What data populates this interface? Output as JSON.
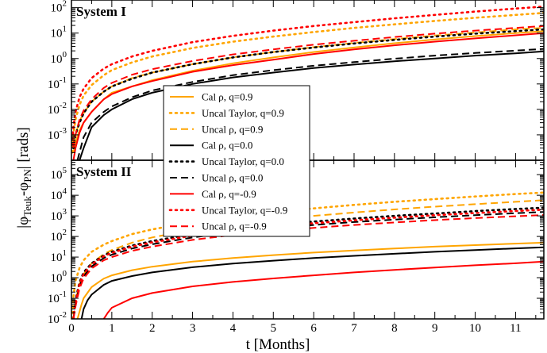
{
  "chart_data": [
    {
      "type": "line",
      "panel": "top",
      "title": "System I",
      "x_scale": "linear",
      "y_scale": "log",
      "xlim": [
        0,
        11.7
      ],
      "ylim": [
        0.0001,
        200
      ],
      "y_ticks": [
        {
          "value": 0.001,
          "base": "10",
          "exp": "-3"
        },
        {
          "value": 0.01,
          "base": "10",
          "exp": "-2"
        },
        {
          "value": 0.1,
          "base": "10",
          "exp": "-1"
        },
        {
          "value": 1,
          "base": "10",
          "exp": "0"
        },
        {
          "value": 10,
          "base": "10",
          "exp": "1"
        },
        {
          "value": 100,
          "base": "10",
          "exp": "2"
        }
      ],
      "series": [
        {
          "name": "Cal ρ, q=0.9",
          "color": "#ffa500",
          "dash": "solid",
          "x": [
            0.05,
            0.1,
            0.2,
            0.3,
            0.5,
            0.8,
            1,
            1.5,
            2,
            3,
            4,
            5,
            6,
            7,
            8,
            9,
            10,
            11,
            11.7
          ],
          "y": [
            0.0002,
            0.0005,
            0.0015,
            0.003,
            0.008,
            0.025,
            0.045,
            0.08,
            0.14,
            0.33,
            0.65,
            1.1,
            1.8,
            2.7,
            4.0,
            5.6,
            7.6,
            10,
            12
          ]
        },
        {
          "name": "Uncal Taylor, q=0.9",
          "color": "#ffa500",
          "dash": "dot",
          "x": [
            0.02,
            0.05,
            0.1,
            0.2,
            0.3,
            0.5,
            0.8,
            1,
            1.5,
            2,
            3,
            4,
            5,
            6,
            7,
            8,
            9,
            10,
            11,
            11.7
          ],
          "y": [
            0.0002,
            0.001,
            0.004,
            0.015,
            0.035,
            0.09,
            0.22,
            0.35,
            0.7,
            1.2,
            2.6,
            4.6,
            7.3,
            11,
            16,
            22,
            30,
            40,
            52,
            62
          ]
        },
        {
          "name": "Uncal ρ, q=0.9",
          "color": "#ffa500",
          "dash": "dash",
          "x": [
            0.05,
            0.1,
            0.2,
            0.3,
            0.5,
            0.8,
            1,
            1.5,
            2,
            3,
            4,
            5,
            6,
            7,
            8,
            9,
            10,
            11,
            11.7
          ],
          "y": [
            0.0004,
            0.001,
            0.0035,
            0.007,
            0.02,
            0.05,
            0.08,
            0.17,
            0.28,
            0.6,
            1.1,
            1.8,
            2.8,
            4.1,
            5.8,
            8,
            10.5,
            14,
            16
          ]
        },
        {
          "name": "Cal ρ, q=0.0",
          "color": "#000000",
          "dash": "solid",
          "x": [
            0.2,
            0.3,
            0.5,
            0.8,
            1,
            1.5,
            2,
            3,
            4,
            5,
            6,
            7,
            8,
            9,
            10,
            11,
            11.7
          ],
          "y": [
            0.0001,
            0.0003,
            0.002,
            0.006,
            0.01,
            0.025,
            0.045,
            0.1,
            0.18,
            0.28,
            0.42,
            0.58,
            0.78,
            1.0,
            1.3,
            1.6,
            1.9
          ]
        },
        {
          "name": "Uncal Taylor, q=0.0",
          "color": "#000000",
          "dash": "dot",
          "x": [
            0.05,
            0.1,
            0.2,
            0.3,
            0.5,
            0.8,
            1,
            1.5,
            2,
            3,
            4,
            5,
            6,
            7,
            8,
            9,
            10,
            11,
            11.7
          ],
          "y": [
            0.0003,
            0.001,
            0.003,
            0.007,
            0.02,
            0.05,
            0.08,
            0.16,
            0.28,
            0.6,
            1.1,
            1.8,
            2.7,
            3.9,
            5.4,
            7.3,
            9.5,
            12,
            14
          ]
        },
        {
          "name": "Uncal ρ, q=0.0",
          "color": "#000000",
          "dash": "dash",
          "x": [
            0.15,
            0.25,
            0.3,
            0.5,
            0.8,
            1,
            1.5,
            2,
            3,
            4,
            5,
            6,
            7,
            8,
            9,
            10,
            11,
            11.7
          ],
          "y": [
            0.0001,
            0.0004,
            0.0008,
            0.003,
            0.008,
            0.013,
            0.03,
            0.055,
            0.12,
            0.22,
            0.35,
            0.52,
            0.72,
            0.98,
            1.3,
            1.65,
            2.05,
            2.4
          ]
        },
        {
          "name": "Cal ρ, q=-0.9",
          "color": "#ff0000",
          "dash": "solid",
          "x": [
            0.05,
            0.1,
            0.2,
            0.3,
            0.5,
            0.8,
            1,
            1.5,
            2,
            3,
            4,
            5,
            6,
            7,
            8,
            9,
            10,
            11,
            11.7
          ],
          "y": [
            0.0001,
            0.0003,
            0.0012,
            0.003,
            0.008,
            0.025,
            0.04,
            0.08,
            0.13,
            0.3,
            0.55,
            0.9,
            1.5,
            2.3,
            3.3,
            4.6,
            6.2,
            8.2,
            10
          ]
        },
        {
          "name": "Uncal Taylor, q=-0.9",
          "color": "#ff0000",
          "dash": "dot",
          "x": [
            0.02,
            0.05,
            0.1,
            0.2,
            0.3,
            0.5,
            0.8,
            1,
            1.5,
            2,
            3,
            4,
            5,
            6,
            7,
            8,
            9,
            10,
            11,
            11.7
          ],
          "y": [
            0.0004,
            0.002,
            0.008,
            0.03,
            0.065,
            0.17,
            0.4,
            0.6,
            1.2,
            2,
            4.4,
            7.8,
            12.5,
            19,
            27,
            38,
            52,
            70,
            92,
            110
          ]
        },
        {
          "name": "Uncal ρ, q=-0.9",
          "color": "#ff0000",
          "dash": "dash",
          "x": [
            0.05,
            0.1,
            0.2,
            0.3,
            0.5,
            0.8,
            1,
            1.5,
            2,
            3,
            4,
            5,
            6,
            7,
            8,
            9,
            10,
            11,
            11.7
          ],
          "y": [
            0.0003,
            0.001,
            0.004,
            0.009,
            0.025,
            0.07,
            0.11,
            0.23,
            0.38,
            0.8,
            1.45,
            2.3,
            3.5,
            5,
            7,
            9.5,
            12.5,
            16,
            19
          ]
        }
      ]
    },
    {
      "type": "line",
      "panel": "bottom",
      "title": "System II",
      "x_scale": "linear",
      "y_scale": "log",
      "xlim": [
        0,
        11.7
      ],
      "ylim": [
        0.01,
        500000
      ],
      "y_ticks": [
        {
          "value": 0.01,
          "base": "10",
          "exp": "-2"
        },
        {
          "value": 0.1,
          "base": "10",
          "exp": "-1"
        },
        {
          "value": 1,
          "base": "10",
          "exp": "0"
        },
        {
          "value": 10,
          "base": "10",
          "exp": "1"
        },
        {
          "value": 100,
          "base": "10",
          "exp": "2"
        },
        {
          "value": 1000,
          "base": "10",
          "exp": "3"
        },
        {
          "value": 10000,
          "base": "10",
          "exp": "4"
        },
        {
          "value": 100000,
          "base": "10",
          "exp": "5"
        }
      ],
      "series": [
        {
          "name": "Cal ρ, q=0.9",
          "color": "#ffa500",
          "dash": "solid",
          "x": [
            0.15,
            0.25,
            0.3,
            0.5,
            0.8,
            1,
            1.5,
            2,
            3,
            4,
            5,
            6,
            7,
            8,
            9,
            10,
            11,
            11.7
          ],
          "y": [
            0.01,
            0.05,
            0.1,
            0.35,
            0.9,
            1.3,
            2.3,
            3.4,
            6,
            9,
            12.5,
            16.5,
            21,
            26,
            32,
            38,
            45,
            50
          ]
        },
        {
          "name": "Uncal Taylor, q=0.9",
          "color": "#ffa500",
          "dash": "dot",
          "x": [
            0.02,
            0.05,
            0.1,
            0.2,
            0.3,
            0.5,
            0.8,
            1,
            1.5,
            2,
            3,
            4,
            5,
            6,
            7,
            8,
            9,
            10,
            11,
            11.7
          ],
          "y": [
            0.01,
            0.12,
            0.7,
            3,
            7,
            18,
            40,
            60,
            130,
            220,
            500,
            900,
            1500,
            2300,
            3400,
            4800,
            6500,
            8700,
            11500,
            13500
          ]
        },
        {
          "name": "Uncal ρ, q=0.9",
          "color": "#ffa500",
          "dash": "dash",
          "x": [
            0.05,
            0.1,
            0.2,
            0.3,
            0.5,
            0.8,
            1,
            1.5,
            2,
            3,
            4,
            5,
            6,
            7,
            8,
            9,
            10,
            11,
            11.7
          ],
          "y": [
            0.01,
            0.08,
            0.5,
            1.5,
            5,
            14,
            22,
            50,
            90,
            210,
            390,
            650,
            1000,
            1450,
            2050,
            2800,
            3700,
            4800,
            5800
          ]
        },
        {
          "name": "Cal ρ, q=0.0",
          "color": "#000000",
          "dash": "solid",
          "x": [
            0.25,
            0.3,
            0.4,
            0.5,
            0.8,
            1,
            1.5,
            2,
            3,
            4,
            5,
            6,
            7,
            8,
            9,
            10,
            11,
            11.7
          ],
          "y": [
            0.01,
            0.03,
            0.08,
            0.15,
            0.45,
            0.7,
            1.2,
            1.8,
            3.2,
            4.8,
            6.7,
            9,
            11.5,
            14.5,
            18,
            22,
            26.5,
            30
          ]
        },
        {
          "name": "Uncal Taylor, q=0.0",
          "color": "#000000",
          "dash": "dot",
          "x": [
            0.05,
            0.1,
            0.2,
            0.3,
            0.5,
            0.8,
            1,
            1.5,
            2,
            3,
            4,
            5,
            6,
            7,
            8,
            9,
            10,
            11,
            11.7
          ],
          "y": [
            0.01,
            0.08,
            0.6,
            1.8,
            5,
            12,
            18,
            36,
            60,
            130,
            230,
            360,
            530,
            740,
            1000,
            1300,
            1700,
            2150,
            2500
          ]
        },
        {
          "name": "Uncal ρ, q=0.0",
          "color": "#000000",
          "dash": "dash",
          "x": [
            0.05,
            0.1,
            0.2,
            0.3,
            0.5,
            0.8,
            1,
            1.5,
            2,
            3,
            4,
            5,
            6,
            7,
            8,
            9,
            10,
            11,
            11.7
          ],
          "y": [
            0.01,
            0.05,
            0.4,
            1.2,
            3.5,
            9,
            13,
            26,
            42,
            90,
            160,
            250,
            360,
            500,
            660,
            850,
            1080,
            1350,
            1550
          ]
        },
        {
          "name": "Cal ρ, q=-0.9",
          "color": "#ff0000",
          "dash": "solid",
          "x": [
            0.8,
            0.9,
            1,
            1.5,
            2,
            3,
            4,
            5,
            6,
            7,
            8,
            9,
            10,
            11,
            11.7
          ],
          "y": [
            0.01,
            0.02,
            0.035,
            0.1,
            0.18,
            0.38,
            0.62,
            0.92,
            1.3,
            1.8,
            2.4,
            3.1,
            4,
            5,
            6
          ]
        },
        {
          "name": "Uncal Taylor, q=-0.9",
          "color": "#ff0000",
          "dash": "dot",
          "x": [
            0.05,
            0.1,
            0.2,
            0.3,
            0.5,
            0.8,
            1,
            1.5,
            2,
            3,
            4,
            5,
            6,
            7,
            8,
            9,
            10,
            11,
            11.7
          ],
          "y": [
            0.01,
            0.06,
            0.5,
            1.5,
            4.5,
            11,
            16,
            32,
            52,
            110,
            190,
            300,
            440,
            610,
            820,
            1070,
            1370,
            1720,
            2000
          ]
        },
        {
          "name": "Uncal ρ, q=-0.9",
          "color": "#ff0000",
          "dash": "dash",
          "x": [
            0.05,
            0.1,
            0.2,
            0.3,
            0.5,
            0.8,
            1,
            1.5,
            2,
            3,
            4,
            5,
            6,
            7,
            8,
            9,
            10,
            11,
            11.7
          ],
          "y": [
            0.01,
            0.04,
            0.3,
            0.9,
            2.8,
            7,
            10,
            20,
            32,
            68,
            118,
            180,
            260,
            360,
            480,
            620,
            780,
            960,
            1100
          ]
        }
      ]
    }
  ],
  "axes": {
    "xlabel": "t [Months]",
    "ylabel_main": "|φ",
    "ylabel_sub1": "Teuk",
    "ylabel_mid": "-φ",
    "ylabel_sub2": "PN",
    "ylabel_tail": "| [rads]",
    "x_ticks": [
      {
        "value": 0,
        "label": "0"
      },
      {
        "value": 1,
        "label": "1"
      },
      {
        "value": 2,
        "label": "2"
      },
      {
        "value": 3,
        "label": "3"
      },
      {
        "value": 4,
        "label": "4"
      },
      {
        "value": 5,
        "label": "5"
      },
      {
        "value": 6,
        "label": "6"
      },
      {
        "value": 7,
        "label": "7"
      },
      {
        "value": 8,
        "label": "8"
      },
      {
        "value": 9,
        "label": "9"
      },
      {
        "value": 10,
        "label": "10"
      },
      {
        "value": 11,
        "label": "11"
      }
    ]
  },
  "legend": {
    "placement": "center-left, spanning both panels",
    "entries": [
      {
        "label": "Cal ρ, q=0.9",
        "color": "#ffa500",
        "dash": "solid"
      },
      {
        "label": "Uncal Taylor, q=0.9",
        "color": "#ffa500",
        "dash": "dot"
      },
      {
        "label": "Uncal ρ, q=0.9",
        "color": "#ffa500",
        "dash": "dash"
      },
      {
        "label": "Cal ρ, q=0.0",
        "color": "#000000",
        "dash": "solid"
      },
      {
        "label": "Uncal Taylor, q=0.0",
        "color": "#000000",
        "dash": "dot"
      },
      {
        "label": "Uncal ρ, q=0.0",
        "color": "#000000",
        "dash": "dash"
      },
      {
        "label": "Cal ρ, q=-0.9",
        "color": "#ff0000",
        "dash": "solid"
      },
      {
        "label": "Uncal Taylor, q=-0.9",
        "color": "#ff0000",
        "dash": "dot"
      },
      {
        "label": "Uncal ρ, q=-0.9",
        "color": "#ff0000",
        "dash": "dash"
      }
    ]
  }
}
